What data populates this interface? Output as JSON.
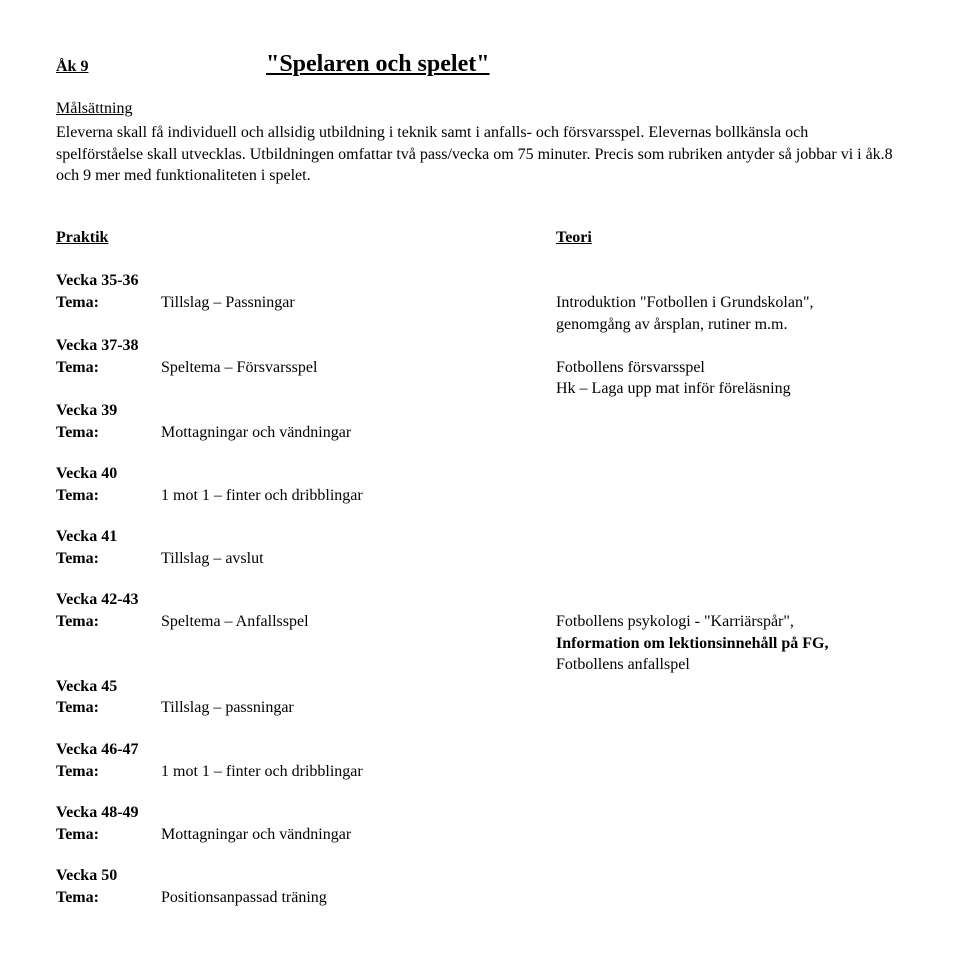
{
  "header": {
    "yearLabel": "Åk 9",
    "title": "\"Spelaren och spelet\""
  },
  "intro": {
    "subhead": "Målsättning",
    "text": "Eleverna skall få individuell och allsidig utbildning i teknik samt i anfalls- och försvarsspel. Elevernas bollkänsla och spelförståelse skall utvecklas. Utbildningen omfattar två pass/vecka om 75 minuter. Precis som rubriken antyder så jobbar vi i åk.8 och 9 mer med funktionaliteten i spelet."
  },
  "columns": {
    "left": "Praktik",
    "right": "Teori"
  },
  "weeks": {
    "w3536": {
      "label": "Vecka 35-36",
      "temaLabel": "Tema:",
      "content": "Tillslag – Passningar",
      "noteLine1": "Introduktion \"Fotbollen i Grundskolan\",",
      "noteLine2": "genomgång av årsplan, rutiner m.m."
    },
    "w3738": {
      "label": "Vecka 37-38",
      "temaLabel": "Tema:",
      "content": "Speltema – Försvarsspel",
      "noteLine1": "Fotbollens försvarsspel",
      "noteLine2": "Hk – Laga upp mat inför föreläsning"
    },
    "w39": {
      "label": "Vecka 39",
      "temaLabel": "Tema:",
      "content": "Mottagningar och vändningar"
    },
    "w40": {
      "label": "Vecka 40",
      "temaLabel": "Tema:",
      "content": "1 mot 1 – finter och dribblingar"
    },
    "w41": {
      "label": "Vecka 41",
      "temaLabel": "Tema:",
      "content": "Tillslag – avslut"
    },
    "w4243": {
      "label": "Vecka 42-43",
      "temaLabel": "Tema:",
      "content": "Speltema – Anfallsspel",
      "noteLine1": "Fotbollens psykologi - \"Karriärspår\",",
      "noteLine2": "Information om lektionsinnehåll på FG,",
      "noteLine3": "Fotbollens anfallspel"
    },
    "w45": {
      "label": "Vecka 45",
      "temaLabel": "Tema:",
      "content": "Tillslag – passningar"
    },
    "w4647": {
      "label": "Vecka 46-47",
      "temaLabel": "Tema:",
      "content": "1 mot 1 – finter och dribblingar"
    },
    "w4849": {
      "label": "Vecka 48-49",
      "temaLabel": "Tema:",
      "content": "Mottagningar och vändningar"
    },
    "w50": {
      "label": "Vecka 50",
      "temaLabel": "Tema:",
      "content": "Positionsanpassad träning"
    }
  }
}
